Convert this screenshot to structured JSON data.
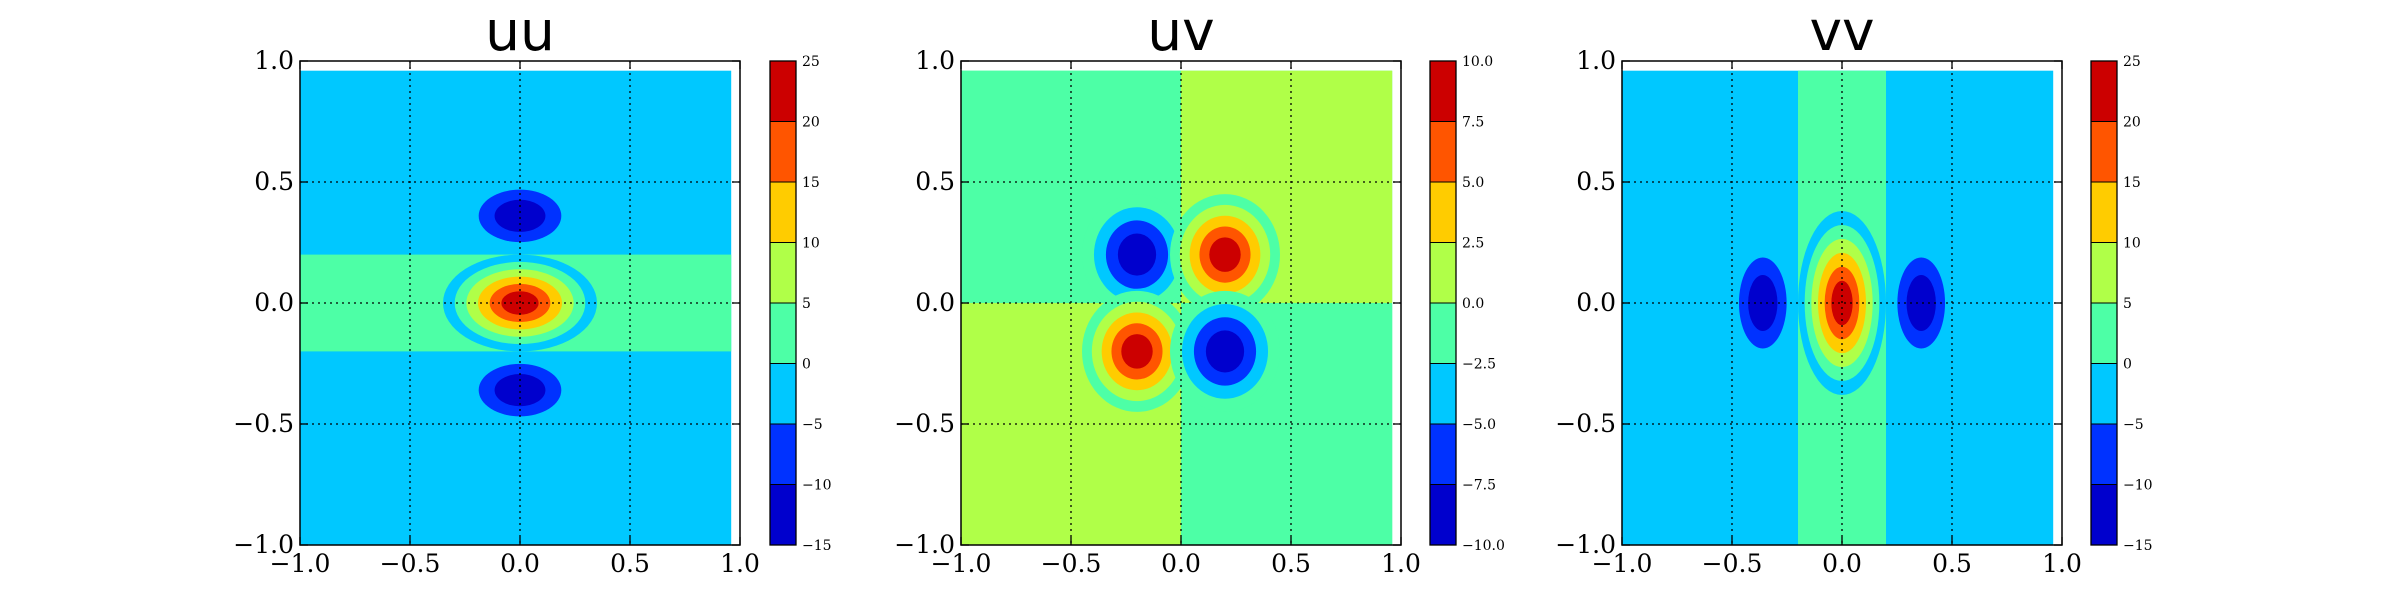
{
  "colors": {
    "levels": [
      "#0000cd",
      "#0032ff",
      "#00c8ff",
      "#4dffa6",
      "#b0ff48",
      "#ffcc00",
      "#ff5500",
      "#cc0000"
    ],
    "background": "#ffffff",
    "axis": "#000000"
  },
  "chart_data": [
    {
      "type": "heatmap",
      "subtype": "filled-contour",
      "title": "uu",
      "xlim": [
        -1.0,
        1.0
      ],
      "ylim": [
        -1.0,
        1.0
      ],
      "xticks": [
        "−1.0",
        "−0.5",
        "0.0",
        "0.5",
        "1.0"
      ],
      "yticks": [
        "−1.0",
        "−0.5",
        "0.0",
        "0.5",
        "1.0"
      ],
      "grid": true,
      "colorbar": {
        "range": [
          -15,
          25
        ],
        "ticks": [
          "−15",
          "−10",
          "−5",
          "0",
          "5",
          "10",
          "15",
          "20",
          "25"
        ]
      },
      "background_level": -2.5,
      "bands": [
        {
          "y": [
            -0.2,
            0.2
          ],
          "level": 2.5
        }
      ],
      "features": [
        {
          "cx": 0.0,
          "cy": 0.0,
          "rx": 0.35,
          "ry": 0.2,
          "peak": 25
        },
        {
          "cx": 0.0,
          "cy": 0.36,
          "rx": 0.26,
          "ry": 0.15,
          "peak": -15
        },
        {
          "cx": 0.0,
          "cy": -0.36,
          "rx": 0.26,
          "ry": 0.15,
          "peak": -15
        }
      ]
    },
    {
      "type": "heatmap",
      "subtype": "filled-contour",
      "title": "uv",
      "xlim": [
        -1.0,
        1.0
      ],
      "ylim": [
        -1.0,
        1.0
      ],
      "xticks": [
        "−1.0",
        "−0.5",
        "0.0",
        "0.5",
        "1.0"
      ],
      "yticks": [
        "−1.0",
        "−0.5",
        "0.0",
        "0.5",
        "1.0"
      ],
      "grid": true,
      "colorbar": {
        "range": [
          -10,
          10
        ],
        "ticks": [
          "−10.0",
          "−7.5",
          "−5.0",
          "−2.5",
          "0.0",
          "2.5",
          "5.0",
          "7.5",
          "10.0"
        ]
      },
      "background_level": -1.25,
      "quadrants": {
        "top_left": -1.25,
        "top_right": 1.25,
        "bottom_left": 1.25,
        "bottom_right": -1.25
      },
      "features": [
        {
          "cx": -0.2,
          "cy": 0.2,
          "rx": 0.25,
          "ry": 0.25,
          "peak": -10
        },
        {
          "cx": 0.2,
          "cy": 0.2,
          "rx": 0.25,
          "ry": 0.25,
          "peak": 10
        },
        {
          "cx": -0.2,
          "cy": -0.2,
          "rx": 0.25,
          "ry": 0.25,
          "peak": 10
        },
        {
          "cx": 0.2,
          "cy": -0.2,
          "rx": 0.25,
          "ry": 0.25,
          "peak": -10
        }
      ]
    },
    {
      "type": "heatmap",
      "subtype": "filled-contour",
      "title": "vv",
      "xlim": [
        -1.0,
        1.0
      ],
      "ylim": [
        -1.0,
        1.0
      ],
      "xticks": [
        "−1.0",
        "−0.5",
        "0.0",
        "0.5",
        "1.0"
      ],
      "yticks": [
        "−1.0",
        "−0.5",
        "0.0",
        "0.5",
        "1.0"
      ],
      "grid": true,
      "colorbar": {
        "range": [
          -15,
          25
        ],
        "ticks": [
          "−15",
          "−10",
          "−5",
          "0",
          "5",
          "10",
          "15",
          "20",
          "25"
        ]
      },
      "background_level": -2.5,
      "bands": [
        {
          "x": [
            -0.2,
            0.2
          ],
          "level": 2.5
        }
      ],
      "features": [
        {
          "cx": 0.0,
          "cy": 0.0,
          "rx": 0.2,
          "ry": 0.38,
          "peak": 25
        },
        {
          "cx": -0.36,
          "cy": 0.0,
          "rx": 0.15,
          "ry": 0.26,
          "peak": -15
        },
        {
          "cx": 0.36,
          "cy": 0.0,
          "rx": 0.15,
          "ry": 0.26,
          "peak": -15
        }
      ]
    }
  ]
}
